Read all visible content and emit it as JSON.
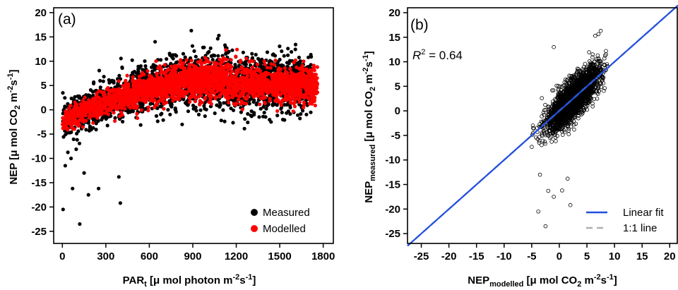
{
  "chart_data": [
    {
      "type": "scatter",
      "panel_label": "(a)",
      "xlabel": "PAR",
      "xlabel_sub": "t",
      "xlabel_unit_pre": " [μ mol photon m",
      "xlabel_unit_exp1": "-2",
      "xlabel_unit_mid": "s",
      "xlabel_unit_exp2": "-1",
      "xlabel_unit_post": "]",
      "ylabel_pre": "NEP [μ mol CO",
      "ylabel_sub": "2",
      "ylabel_mid": " m",
      "ylabel_exp1": "-2",
      "ylabel_mid2": "s",
      "ylabel_exp2": "-1",
      "ylabel_post": "]",
      "xlim": [
        -60,
        1870
      ],
      "ylim": [
        -27.5,
        21
      ],
      "xticks": [
        0,
        300,
        600,
        900,
        1200,
        1500,
        1800
      ],
      "yticks": [
        20,
        15,
        10,
        5,
        0,
        -5,
        -10,
        -15,
        -20,
        -25
      ],
      "legend_position": "bottom-right",
      "series": [
        {
          "name": "Measured",
          "color": "#000000",
          "trend": {
            "par_points": [
              0,
              150,
              300,
              450,
              600,
              750,
              900,
              1050,
              1200,
              1350,
              1500,
              1650,
              1750
            ],
            "nep": [
              -2.0,
              -0.5,
              1.5,
              3.0,
              4.0,
              5.0,
              5.8,
              5.9,
              5.5,
              5.3,
              5.3,
              5.4,
              5.3
            ]
          },
          "outliers": [
            {
              "x": 5,
              "y": -20.5
            },
            {
              "x": 120,
              "y": -23.5
            },
            {
              "x": 70,
              "y": -16.2
            },
            {
              "x": 180,
              "y": -17.5
            },
            {
              "x": 250,
              "y": -16.2
            },
            {
              "x": 400,
              "y": -19.2
            },
            {
              "x": 390,
              "y": -13.8
            },
            {
              "x": 150,
              "y": -13.0
            },
            {
              "x": 20,
              "y": -11.5
            },
            {
              "x": 60,
              "y": -10.0
            },
            {
              "x": 890,
              "y": 16.3
            },
            {
              "x": 1080,
              "y": 15.3
            },
            {
              "x": 640,
              "y": 14.0
            },
            {
              "x": 1440,
              "y": -2.5
            },
            {
              "x": 1560,
              "y": -0.3
            }
          ]
        },
        {
          "name": "Modelled",
          "color": "#ff0000",
          "trend": {
            "par_points": [
              0,
              150,
              300,
              450,
              600,
              750,
              900,
              1050,
              1200,
              1350,
              1500,
              1650,
              1750
            ],
            "nep": [
              -2.5,
              -0.3,
              1.5,
              3.0,
              4.2,
              5.2,
              6.0,
              6.2,
              5.6,
              5.3,
              5.2,
              5.3,
              5.0
            ]
          }
        }
      ]
    },
    {
      "type": "scatter",
      "panel_label": "(b)",
      "annotation": {
        "r_symbol": "R",
        "r_exp": "2",
        "rest": " = 0.64"
      },
      "xlabel_pre": "NEP",
      "xlabel_sub": "modelled",
      "xlabel_unit_pre": " [μ mol CO",
      "xlabel_unit_sub": "2",
      "xlabel_unit_mid": " m",
      "xlabel_unit_exp1": "-2",
      "xlabel_unit_mid2": "s",
      "xlabel_unit_exp2": "-1",
      "xlabel_unit_post": "]",
      "ylabel_pre": "NEP",
      "ylabel_sub": "measured",
      "ylabel_unit_pre": " [μ mol CO",
      "ylabel_unit_sub": "2",
      "ylabel_unit_mid": " m",
      "ylabel_unit_exp1": "-2",
      "ylabel_unit_mid2": "s",
      "ylabel_unit_exp2": "-1",
      "ylabel_unit_post": "]",
      "xlim": [
        -27.5,
        21.5
      ],
      "ylim": [
        -27,
        21
      ],
      "xticks": [
        -25,
        -20,
        -15,
        -10,
        -5,
        0,
        5,
        10,
        15,
        20
      ],
      "yticks": [
        20,
        15,
        10,
        5,
        0,
        -5,
        -10,
        -15,
        -20,
        -25
      ],
      "legend_position": "bottom-right",
      "series": [
        {
          "name": "Linear fit",
          "color": "#1f4fe0",
          "line": {
            "slope": 1.0,
            "intercept": 0.0
          }
        },
        {
          "name": "1:1 line",
          "color": "#b0b0b0",
          "line": {
            "slope": 1.0,
            "intercept": 0.0
          }
        },
        {
          "name": "data",
          "color": "#000000",
          "cluster": {
            "center": [
              2.5,
              2.5
            ],
            "sd_x": 2.4,
            "sd_y": 3.2,
            "correlation": 0.8
          },
          "outliers": [
            {
              "x": -3.8,
              "y": -20.5
            },
            {
              "x": -2.5,
              "y": -23.5
            },
            {
              "x": -2.0,
              "y": -16.3
            },
            {
              "x": -1.0,
              "y": -17.5
            },
            {
              "x": 2.0,
              "y": -19.2
            },
            {
              "x": 0.5,
              "y": -16.2
            },
            {
              "x": 1.5,
              "y": -13.8
            },
            {
              "x": 7.5,
              "y": 16.3
            },
            {
              "x": 6.5,
              "y": 15.3
            },
            {
              "x": -1.0,
              "y": 13.0
            },
            {
              "x": -3.5,
              "y": -13.0
            }
          ]
        }
      ]
    }
  ]
}
